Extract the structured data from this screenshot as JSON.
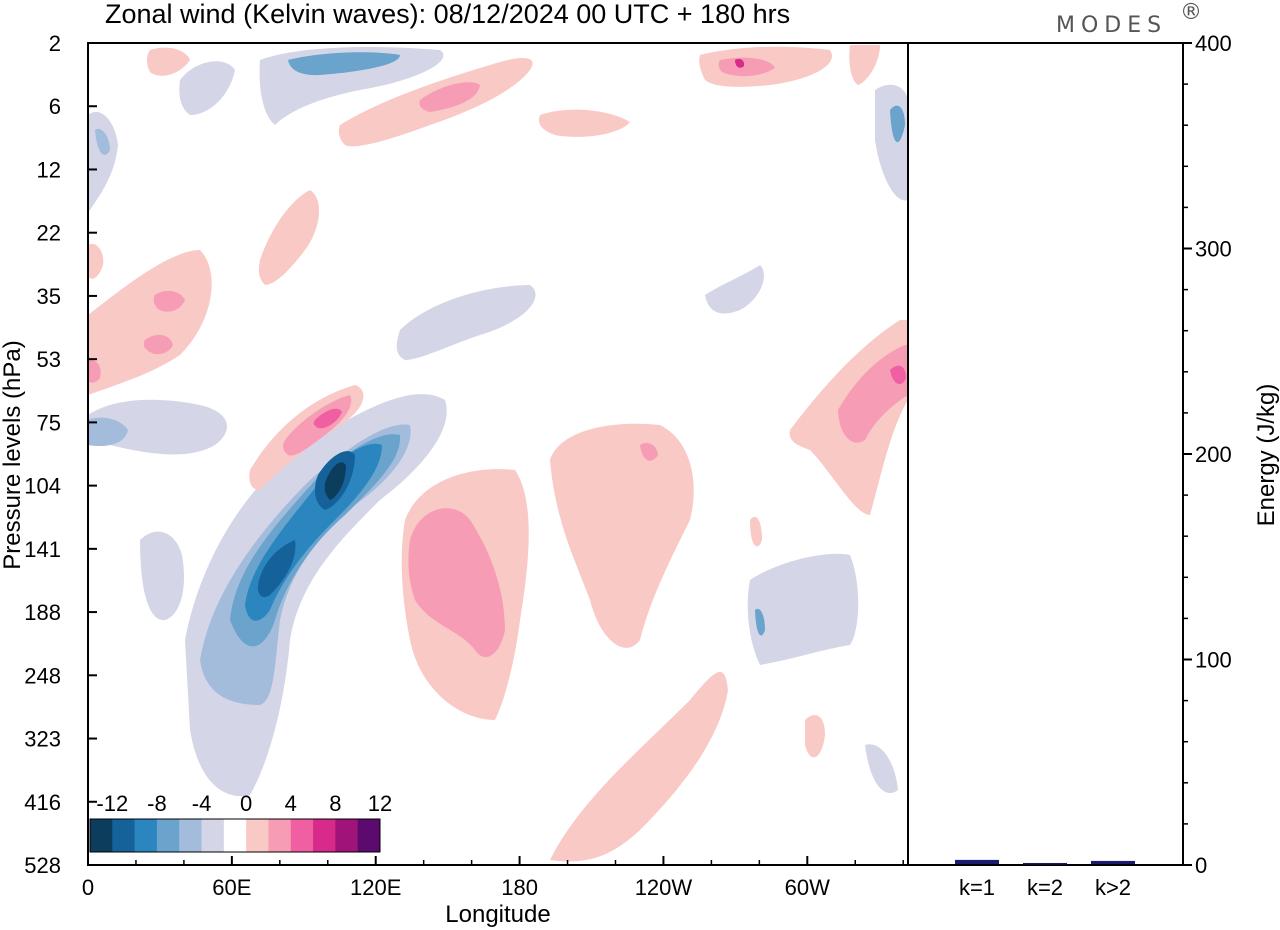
{
  "header": {
    "title": "Zonal wind (Kelvin waves):  08/12/2024  00 UTC  + 180 hrs",
    "brand": "MODES"
  },
  "chart_data": [
    {
      "type": "heatmap",
      "title": "Zonal wind (Kelvin waves):  08/12/2024  00 UTC  + 180 hrs",
      "xlabel": "Longitude",
      "ylabel": "Pressure levels (hPa)",
      "x_ticks": [
        "0",
        "60E",
        "120E",
        "180",
        "120W",
        "60W"
      ],
      "x_range_deg": [
        0,
        342
      ],
      "y_ticks": [
        "2",
        "6",
        "12",
        "22",
        "35",
        "53",
        "75",
        "104",
        "141",
        "188",
        "248",
        "323",
        "416",
        "528"
      ],
      "colorbar": {
        "labels": [
          "-12",
          "-8",
          "-4",
          "0",
          "4",
          "8",
          "12"
        ],
        "levels": [
          -14,
          -12,
          -10,
          -8,
          -6,
          -4,
          -2,
          2,
          4,
          6,
          8,
          10,
          12,
          14
        ],
        "colors": [
          "#0d3d5c",
          "#15629b",
          "#2b86c0",
          "#6aa3cc",
          "#a4bcdc",
          "#d4d6e8",
          "#ffffff",
          "#f9c9c6",
          "#f79cb5",
          "#ef5fa2",
          "#d72a8a",
          "#a0147a",
          "#5c0a6e"
        ],
        "legend_position": "bottom-left"
      },
      "features": [
        {
          "sign": "negative",
          "peak_value": -14,
          "center_lon": "110E",
          "center_hPa": 104
        },
        {
          "sign": "negative",
          "peak_value": -12,
          "center_lon": "72E",
          "center_hPa": 160
        },
        {
          "sign": "positive",
          "peak_value": 8,
          "center_lon": "100E",
          "center_hPa": 75
        },
        {
          "sign": "positive",
          "peak_value": 6,
          "center_lon": "150E",
          "center_hPa": 160
        },
        {
          "sign": "positive",
          "peak_value": 8,
          "center_lon": "15W",
          "center_hPa": 60
        }
      ]
    },
    {
      "type": "bar",
      "xlabel": "",
      "ylabel": "Energy (J/kg)",
      "categories": [
        "k=1",
        "k=2",
        "k>2"
      ],
      "values": [
        2,
        0.5,
        1.5
      ],
      "ylim": [
        0,
        400
      ],
      "y_ticks": [
        "0",
        "100",
        "200",
        "300",
        "400"
      ],
      "bar_color": "#1a1a6e"
    }
  ]
}
